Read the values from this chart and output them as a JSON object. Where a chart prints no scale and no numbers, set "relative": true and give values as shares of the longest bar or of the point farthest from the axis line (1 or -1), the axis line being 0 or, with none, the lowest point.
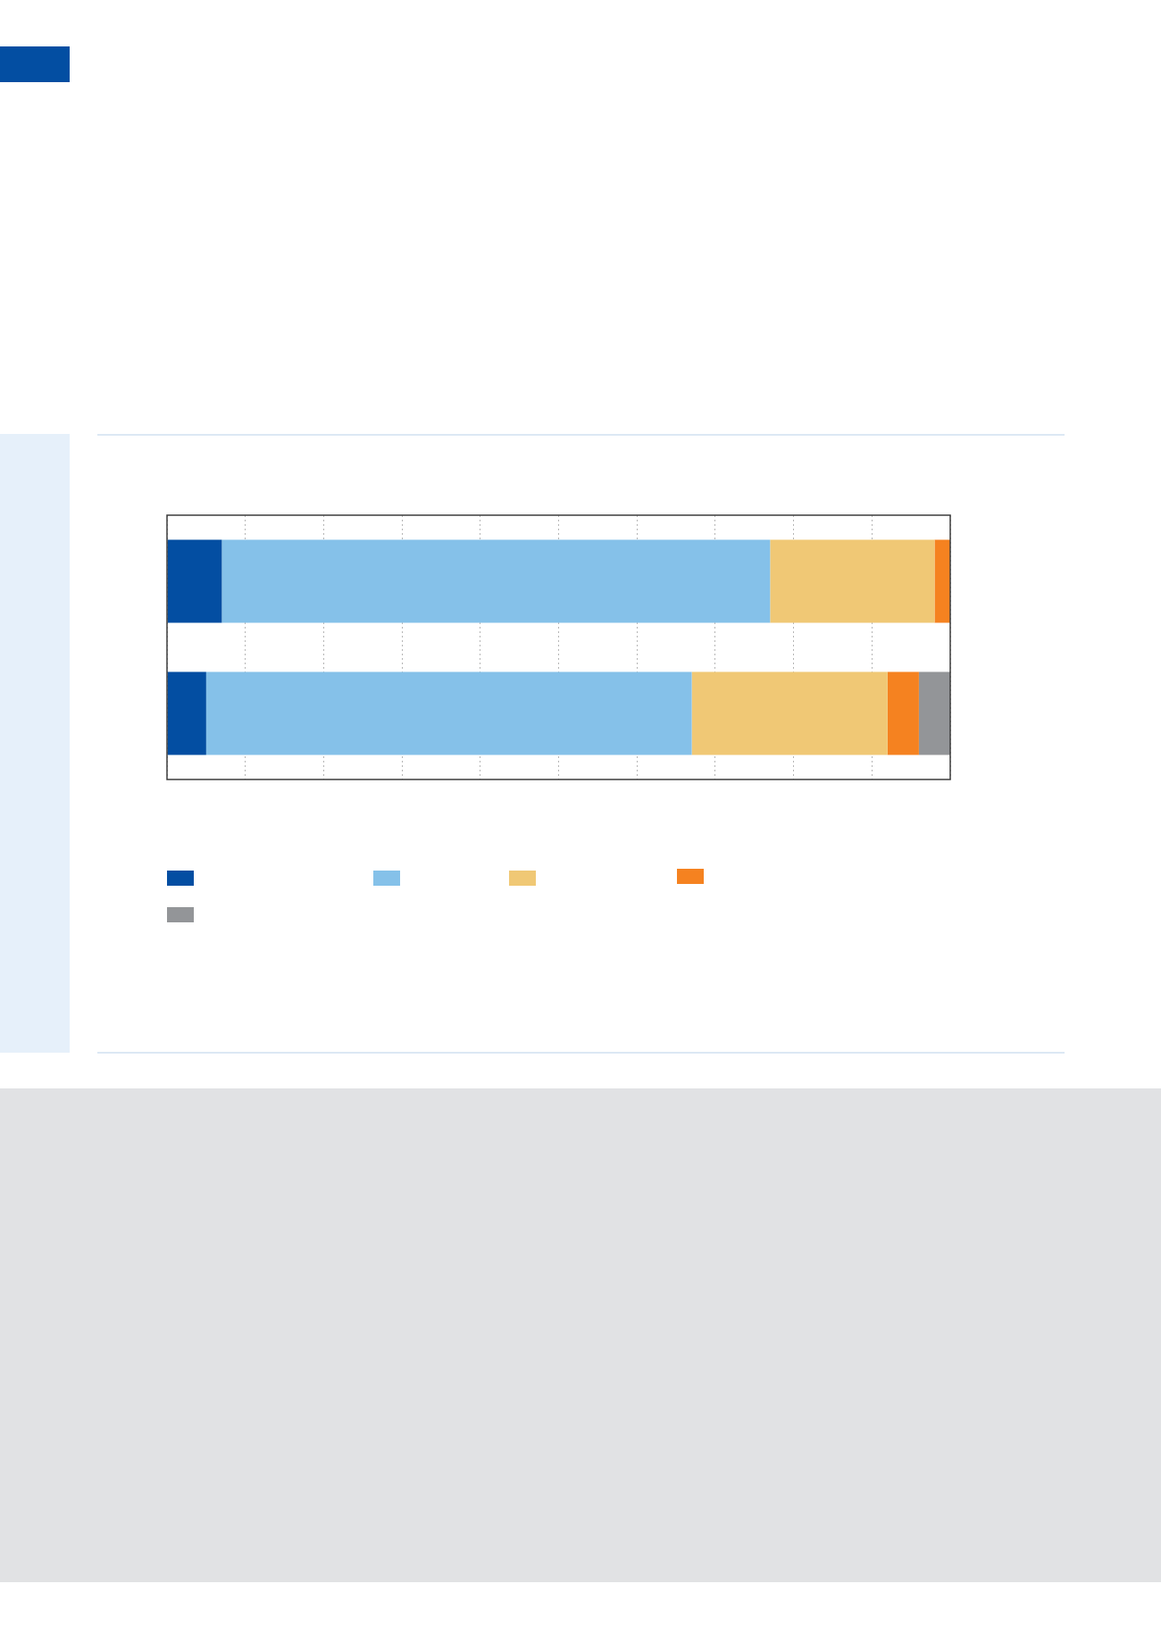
{
  "chart_data": {
    "type": "bar",
    "orientation": "horizontal",
    "stacked": true,
    "relative": true,
    "categories": [
      null,
      null
    ],
    "series": [
      {
        "color": "#034ea2",
        "values": [
          0.07,
          0.05
        ]
      },
      {
        "color": "#85c1e9",
        "values": [
          0.7,
          0.62
        ]
      },
      {
        "color": "#f0c875",
        "values": [
          0.21,
          0.25
        ]
      },
      {
        "color": "#f58220",
        "values": [
          0.02,
          0.04
        ]
      },
      {
        "color": "#939598",
        "values": [
          0,
          0.04
        ]
      }
    ],
    "grid": "x"
  }
}
